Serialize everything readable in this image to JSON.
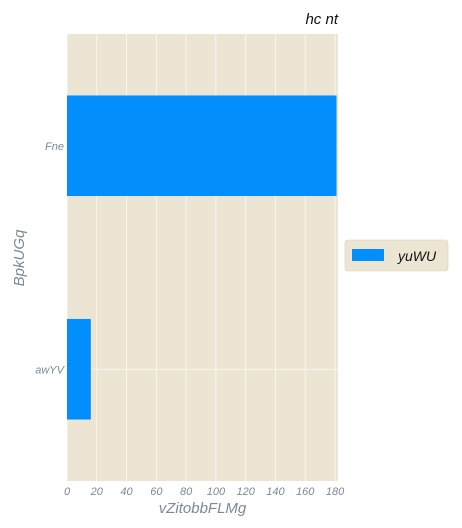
{
  "chart_data": {
    "type": "bar",
    "orientation": "horizontal",
    "title": "hc nt",
    "xlabel": "vZitobbFLMg",
    "ylabel": "BpkUGq",
    "categories": [
      "Fne",
      "awYV"
    ],
    "series": [
      {
        "name": "yuWU",
        "values": [
          181,
          16
        ],
        "color": "#038efe"
      }
    ],
    "xlim": [
      0,
      182
    ],
    "xticks": [
      0,
      20,
      40,
      60,
      80,
      100,
      120,
      140,
      160,
      180
    ],
    "grid": true,
    "legend": "right",
    "background": "#ede5d3",
    "grid_color": "#ffffff"
  }
}
